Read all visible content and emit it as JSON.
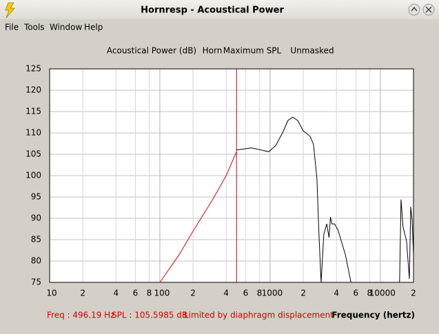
{
  "window": {
    "title": "Hornresp - Acoustical Power"
  },
  "menu": [
    "File",
    "Tools",
    "Window",
    "Help"
  ],
  "chart_data": {
    "type": "line",
    "title": "Acoustical Power (dB)",
    "tags": [
      "Horn",
      "Maximum SPL",
      "Unmasked"
    ],
    "x_label": "Frequency (hertz)",
    "xlim": [
      10,
      20000
    ],
    "x_log": true,
    "xticks": [
      10,
      {
        "value": 20,
        "label": "2"
      },
      {
        "value": 40,
        "label": "4"
      },
      {
        "value": 60,
        "label": "6"
      },
      {
        "value": 80,
        "label": "8"
      },
      100,
      {
        "value": 200,
        "label": "2"
      },
      {
        "value": 400,
        "label": "4"
      },
      {
        "value": 600,
        "label": "6"
      },
      {
        "value": 800,
        "label": "8"
      },
      1000,
      {
        "value": 2000,
        "label": "2"
      },
      {
        "value": 4000,
        "label": "4"
      },
      {
        "value": 6000,
        "label": "6"
      },
      {
        "value": 8000,
        "label": "8"
      },
      10000,
      {
        "value": 20000,
        "label": "2"
      }
    ],
    "ylim": [
      75,
      125
    ],
    "yticks": [
      75,
      80,
      85,
      90,
      95,
      100,
      105,
      110,
      115,
      120,
      125
    ],
    "grid": true,
    "cursor_x": 496.19,
    "cursor_color": "#cc0000",
    "series": [
      {
        "color": "#dd0000",
        "x": [
          100,
          150,
          200,
          300,
          400,
          496
        ],
        "values": [
          75,
          81.5,
          87,
          94.3,
          100,
          105.6
        ]
      },
      {
        "color": "#000000",
        "x": [
          496,
          678,
          972,
          1122,
          1296,
          1452,
          1606,
          1778,
          1995,
          2307,
          2477,
          2660,
          2776,
          2903,
          2950,
          2903,
          3073,
          3264,
          3425,
          3529,
          3634,
          3853,
          4154,
          4816,
          5420,
          6000,
          14962,
          15403,
          16069,
          17290,
          18340,
          18880,
          19440,
          20000
        ],
        "values": [
          106,
          106.5,
          105.6,
          107,
          110,
          112.9,
          113.7,
          112.9,
          110.5,
          109.2,
          107.3,
          99.2,
          86.3,
          75,
          null,
          75,
          86.3,
          88.7,
          85.5,
          90.3,
          88.7,
          88.7,
          87.1,
          81.5,
          75,
          null,
          75,
          94.4,
          88,
          84.7,
          75.8,
          92.7,
          89.5,
          81.5
        ]
      }
    ]
  },
  "status": {
    "freq": "Freq : 496.19 Hz",
    "spl": "SPL : 105.5985 dB",
    "note": "Limited by diaphragm displacement"
  }
}
